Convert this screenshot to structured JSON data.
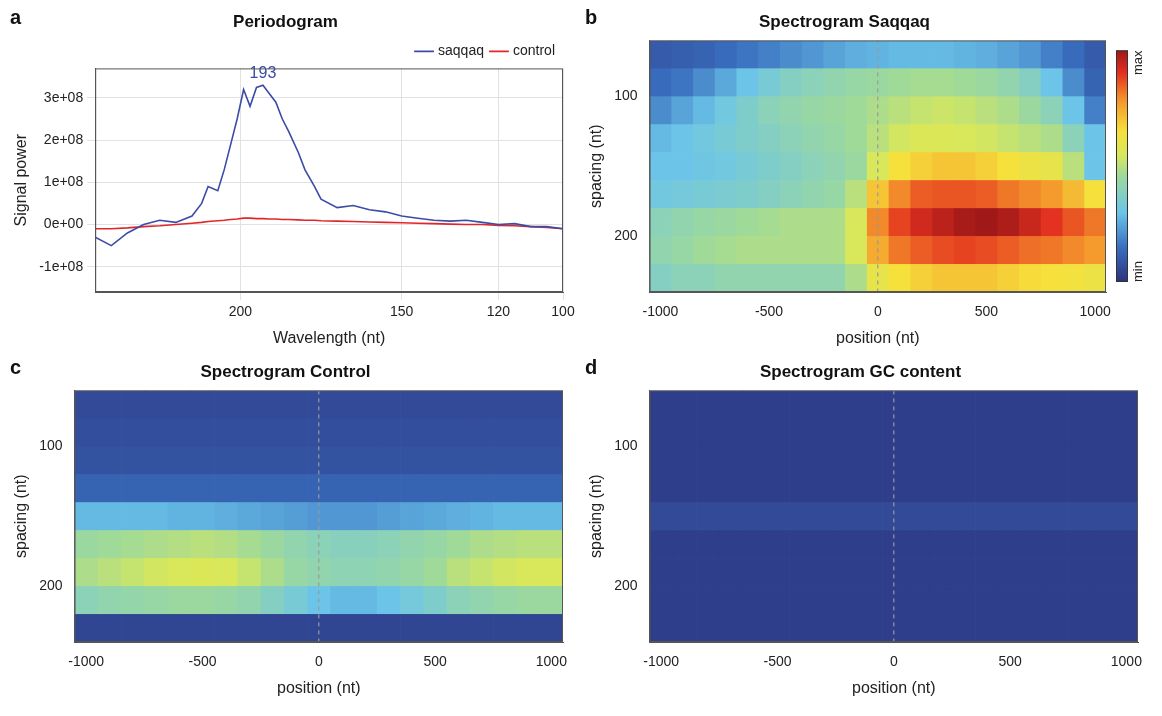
{
  "chart_data": [
    {
      "panel": "a",
      "type": "line",
      "title": "Periodogram",
      "x_label": "Wavelength (nt)",
      "y_label": "Signal power",
      "x": [
        245,
        240,
        235,
        230,
        225,
        220,
        215,
        212,
        210,
        207,
        205,
        203,
        201,
        199,
        197,
        195,
        193,
        191,
        189,
        187,
        185,
        182,
        180,
        177,
        175,
        170,
        165,
        160,
        155,
        150,
        145,
        140,
        135,
        130,
        125,
        120,
        115,
        110,
        105,
        100
      ],
      "series": [
        {
          "name": "saqqaq",
          "color": "#3b4ba6",
          "values": [
            -30000000.0,
            -50000000.0,
            -20000000.0,
            0,
            10000000.0,
            5000000.0,
            20000000.0,
            50000000.0,
            90000000.0,
            80000000.0,
            130000000.0,
            190000000.0,
            250000000.0,
            320000000.0,
            280000000.0,
            325000000.0,
            330000000.0,
            310000000.0,
            290000000.0,
            250000000.0,
            220000000.0,
            170000000.0,
            130000000.0,
            90000000.0,
            60000000.0,
            40000000.0,
            45000000.0,
            35000000.0,
            30000000.0,
            20000000.0,
            15000000.0,
            10000000.0,
            8000000.0,
            10000000.0,
            5000000.0,
            0,
            2000000.0,
            -5000000.0,
            -5000000.0,
            -10000000.0
          ]
        },
        {
          "name": "control",
          "color": "#e0262b",
          "values": [
            -10000000.0,
            -10000000.0,
            -8000000.0,
            -5000000.0,
            -3000000.0,
            0,
            3000000.0,
            5000000.0,
            7000000.0,
            9000000.0,
            10000000.0,
            12000000.0,
            13000000.0,
            15000000.0,
            15000000.0,
            14000000.0,
            14000000.0,
            13000000.0,
            13000000.0,
            12000000.0,
            12000000.0,
            11000000.0,
            10000000.0,
            10000000.0,
            9000000.0,
            8000000.0,
            7000000.0,
            6000000.0,
            5000000.0,
            4000000.0,
            3000000.0,
            2000000.0,
            1000000.0,
            0,
            0,
            -2000000.0,
            -3000000.0,
            -5000000.0,
            -7000000.0,
            -10000000.0
          ]
        }
      ],
      "xlim": [
        245,
        100
      ],
      "xticks": [
        200,
        150,
        120,
        100
      ],
      "ylim": [
        -160000000.0,
        370000000.0
      ],
      "yticks": [
        {
          "value": -100000000.0,
          "label": "-1e+08"
        },
        {
          "value": 0,
          "label": "0e+00"
        },
        {
          "value": 100000000.0,
          "label": "1e+08"
        },
        {
          "value": 200000000.0,
          "label": "2e+08"
        },
        {
          "value": 300000000.0,
          "label": "3e+08"
        }
      ],
      "grid": true,
      "legend": "top-right",
      "annotations": [
        {
          "text": "193",
          "x": 193,
          "y": 330000000.0,
          "series": "saqqaq"
        }
      ]
    },
    {
      "panel": "b",
      "type": "heatmap",
      "title": "Spectrogram Saqqaq",
      "x_label": "position (nt)",
      "y_label": "spacing (nt)",
      "x": [
        -1000,
        -900,
        -800,
        -700,
        -600,
        -500,
        -400,
        -300,
        -200,
        -100,
        0,
        100,
        200,
        300,
        400,
        500,
        600,
        700,
        800,
        900,
        1000
      ],
      "y": [
        70,
        90,
        110,
        130,
        150,
        170,
        190,
        210,
        230
      ],
      "cells": [
        [
          0.1,
          0.11,
          0.12,
          0.14,
          0.16,
          0.18,
          0.2,
          0.22,
          0.24,
          0.26,
          0.27,
          0.28,
          0.28,
          0.28,
          0.27,
          0.26,
          0.24,
          0.22,
          0.18,
          0.14,
          0.1
        ],
        [
          0.14,
          0.16,
          0.2,
          0.25,
          0.3,
          0.34,
          0.38,
          0.4,
          0.42,
          0.44,
          0.45,
          0.46,
          0.47,
          0.47,
          0.46,
          0.45,
          0.42,
          0.38,
          0.3,
          0.2,
          0.12
        ],
        [
          0.2,
          0.24,
          0.28,
          0.32,
          0.36,
          0.4,
          0.42,
          0.44,
          0.45,
          0.46,
          0.48,
          0.5,
          0.52,
          0.53,
          0.52,
          0.5,
          0.48,
          0.45,
          0.4,
          0.3,
          0.18
        ],
        [
          0.28,
          0.3,
          0.32,
          0.34,
          0.36,
          0.38,
          0.4,
          0.42,
          0.44,
          0.46,
          0.5,
          0.54,
          0.56,
          0.56,
          0.55,
          0.54,
          0.52,
          0.5,
          0.48,
          0.4,
          0.3
        ],
        [
          0.3,
          0.3,
          0.31,
          0.32,
          0.34,
          0.36,
          0.38,
          0.4,
          0.42,
          0.45,
          0.55,
          0.65,
          0.68,
          0.7,
          0.7,
          0.68,
          0.65,
          0.62,
          0.6,
          0.5,
          0.3
        ],
        [
          0.32,
          0.33,
          0.34,
          0.35,
          0.36,
          0.38,
          0.4,
          0.42,
          0.44,
          0.5,
          0.7,
          0.8,
          0.85,
          0.86,
          0.86,
          0.85,
          0.82,
          0.8,
          0.78,
          0.72,
          0.65
        ],
        [
          0.4,
          0.42,
          0.44,
          0.45,
          0.46,
          0.47,
          0.48,
          0.48,
          0.48,
          0.55,
          0.8,
          0.88,
          0.93,
          0.96,
          0.99,
          1.0,
          0.98,
          0.94,
          0.9,
          0.86,
          0.82
        ],
        [
          0.42,
          0.44,
          0.46,
          0.47,
          0.48,
          0.48,
          0.48,
          0.48,
          0.48,
          0.55,
          0.75,
          0.82,
          0.85,
          0.87,
          0.88,
          0.87,
          0.85,
          0.83,
          0.82,
          0.8,
          0.78
        ],
        [
          0.38,
          0.4,
          0.4,
          0.42,
          0.42,
          0.42,
          0.42,
          0.42,
          0.42,
          0.48,
          0.6,
          0.65,
          0.68,
          0.7,
          0.7,
          0.7,
          0.68,
          0.66,
          0.65,
          0.64,
          0.62
        ]
      ],
      "xlim": [
        -1050,
        1050
      ],
      "xticks": [
        -1000,
        -500,
        0,
        500,
        1000
      ],
      "ylim": [
        240,
        60
      ],
      "yticks": [
        100,
        200
      ],
      "vline": 0,
      "colorbar": {
        "zlim": [
          0,
          1
        ],
        "ticks": [
          {
            "value": 1,
            "label": "max"
          },
          {
            "value": 0,
            "label": "min"
          }
        ]
      }
    },
    {
      "panel": "c",
      "type": "heatmap",
      "title": "Spectrogram Control",
      "x_label": "position (nt)",
      "y_label": "spacing (nt)",
      "x": [
        -1000,
        -900,
        -800,
        -700,
        -600,
        -500,
        -400,
        -300,
        -200,
        -100,
        0,
        100,
        200,
        300,
        400,
        500,
        600,
        700,
        800,
        900,
        1000
      ],
      "y": [
        70,
        90,
        110,
        130,
        150,
        170,
        190,
        210,
        230
      ],
      "cells": [
        [
          0.06,
          0.06,
          0.06,
          0.06,
          0.06,
          0.06,
          0.06,
          0.06,
          0.06,
          0.06,
          0.06,
          0.06,
          0.06,
          0.06,
          0.06,
          0.06,
          0.06,
          0.06,
          0.06,
          0.06,
          0.06
        ],
        [
          0.07,
          0.07,
          0.07,
          0.07,
          0.07,
          0.07,
          0.07,
          0.07,
          0.07,
          0.07,
          0.07,
          0.07,
          0.07,
          0.07,
          0.07,
          0.07,
          0.07,
          0.07,
          0.07,
          0.07,
          0.07
        ],
        [
          0.08,
          0.08,
          0.08,
          0.08,
          0.08,
          0.08,
          0.08,
          0.08,
          0.08,
          0.08,
          0.08,
          0.08,
          0.08,
          0.08,
          0.08,
          0.08,
          0.08,
          0.08,
          0.08,
          0.08,
          0.08
        ],
        [
          0.12,
          0.12,
          0.12,
          0.12,
          0.12,
          0.12,
          0.12,
          0.12,
          0.12,
          0.12,
          0.12,
          0.12,
          0.12,
          0.12,
          0.12,
          0.12,
          0.12,
          0.12,
          0.12,
          0.12,
          0.12
        ],
        [
          0.28,
          0.28,
          0.28,
          0.28,
          0.27,
          0.27,
          0.26,
          0.25,
          0.24,
          0.23,
          0.22,
          0.22,
          0.22,
          0.23,
          0.24,
          0.25,
          0.26,
          0.27,
          0.28,
          0.28,
          0.28
        ],
        [
          0.45,
          0.46,
          0.47,
          0.48,
          0.49,
          0.5,
          0.49,
          0.47,
          0.45,
          0.42,
          0.4,
          0.39,
          0.39,
          0.4,
          0.42,
          0.44,
          0.46,
          0.48,
          0.49,
          0.5,
          0.5
        ],
        [
          0.48,
          0.5,
          0.52,
          0.54,
          0.55,
          0.56,
          0.55,
          0.52,
          0.48,
          0.44,
          0.42,
          0.41,
          0.41,
          0.42,
          0.44,
          0.46,
          0.5,
          0.52,
          0.54,
          0.55,
          0.55
        ],
        [
          0.4,
          0.42,
          0.43,
          0.44,
          0.45,
          0.45,
          0.44,
          0.42,
          0.38,
          0.34,
          0.3,
          0.28,
          0.28,
          0.3,
          0.33,
          0.36,
          0.4,
          0.42,
          0.44,
          0.45,
          0.45
        ],
        [
          0.05,
          0.05,
          0.05,
          0.05,
          0.05,
          0.05,
          0.05,
          0.05,
          0.05,
          0.05,
          0.05,
          0.05,
          0.05,
          0.05,
          0.05,
          0.05,
          0.05,
          0.05,
          0.05,
          0.05,
          0.05
        ]
      ],
      "xlim": [
        -1050,
        1050
      ],
      "xticks": [
        -1000,
        -500,
        0,
        500,
        1000
      ],
      "ylim": [
        240,
        60
      ],
      "yticks": [
        100,
        200
      ],
      "vline": 0,
      "zlim": [
        0,
        1
      ]
    },
    {
      "panel": "d",
      "type": "heatmap",
      "title": "Spectrogram GC content",
      "x_label": "position (nt)",
      "y_label": "spacing (nt)",
      "x": [
        -1000,
        -900,
        -800,
        -700,
        -600,
        -500,
        -400,
        -300,
        -200,
        -100,
        0,
        100,
        200,
        300,
        400,
        500,
        600,
        700,
        800,
        900,
        1000
      ],
      "y": [
        70,
        90,
        110,
        130,
        150,
        170,
        190,
        210,
        230
      ],
      "cells": [
        [
          0.03,
          0.03,
          0.03,
          0.03,
          0.03,
          0.03,
          0.03,
          0.03,
          0.03,
          0.03,
          0.03,
          0.03,
          0.03,
          0.03,
          0.03,
          0.03,
          0.03,
          0.03,
          0.03,
          0.03,
          0.03
        ],
        [
          0.03,
          0.03,
          0.03,
          0.03,
          0.03,
          0.03,
          0.03,
          0.03,
          0.03,
          0.03,
          0.03,
          0.03,
          0.03,
          0.03,
          0.03,
          0.03,
          0.03,
          0.03,
          0.03,
          0.03,
          0.03
        ],
        [
          0.03,
          0.03,
          0.03,
          0.03,
          0.03,
          0.03,
          0.03,
          0.03,
          0.03,
          0.03,
          0.03,
          0.03,
          0.03,
          0.03,
          0.03,
          0.03,
          0.03,
          0.03,
          0.03,
          0.03,
          0.03
        ],
        [
          0.03,
          0.03,
          0.03,
          0.03,
          0.03,
          0.03,
          0.03,
          0.03,
          0.03,
          0.03,
          0.03,
          0.03,
          0.03,
          0.03,
          0.03,
          0.03,
          0.03,
          0.03,
          0.03,
          0.03,
          0.03
        ],
        [
          0.06,
          0.06,
          0.06,
          0.06,
          0.06,
          0.06,
          0.06,
          0.06,
          0.06,
          0.06,
          0.06,
          0.06,
          0.06,
          0.06,
          0.06,
          0.06,
          0.06,
          0.06,
          0.06,
          0.06,
          0.06
        ],
        [
          0.03,
          0.03,
          0.03,
          0.03,
          0.03,
          0.03,
          0.03,
          0.03,
          0.03,
          0.03,
          0.03,
          0.03,
          0.03,
          0.03,
          0.03,
          0.03,
          0.03,
          0.03,
          0.03,
          0.03,
          0.03
        ],
        [
          0.03,
          0.03,
          0.03,
          0.03,
          0.03,
          0.03,
          0.03,
          0.03,
          0.03,
          0.03,
          0.03,
          0.03,
          0.03,
          0.03,
          0.03,
          0.03,
          0.03,
          0.03,
          0.03,
          0.03,
          0.03
        ],
        [
          0.03,
          0.03,
          0.03,
          0.03,
          0.03,
          0.03,
          0.03,
          0.03,
          0.03,
          0.03,
          0.03,
          0.03,
          0.03,
          0.03,
          0.03,
          0.03,
          0.03,
          0.03,
          0.03,
          0.03,
          0.03
        ],
        [
          0.03,
          0.03,
          0.03,
          0.03,
          0.03,
          0.03,
          0.03,
          0.03,
          0.03,
          0.03,
          0.03,
          0.03,
          0.03,
          0.03,
          0.03,
          0.03,
          0.03,
          0.03,
          0.03,
          0.03,
          0.03
        ]
      ],
      "xlim": [
        -1050,
        1050
      ],
      "xticks": [
        -1000,
        -500,
        0,
        500,
        1000
      ],
      "ylim": [
        240,
        60
      ],
      "yticks": [
        100,
        200
      ],
      "vline": 0,
      "zlim": [
        0,
        1
      ]
    }
  ]
}
